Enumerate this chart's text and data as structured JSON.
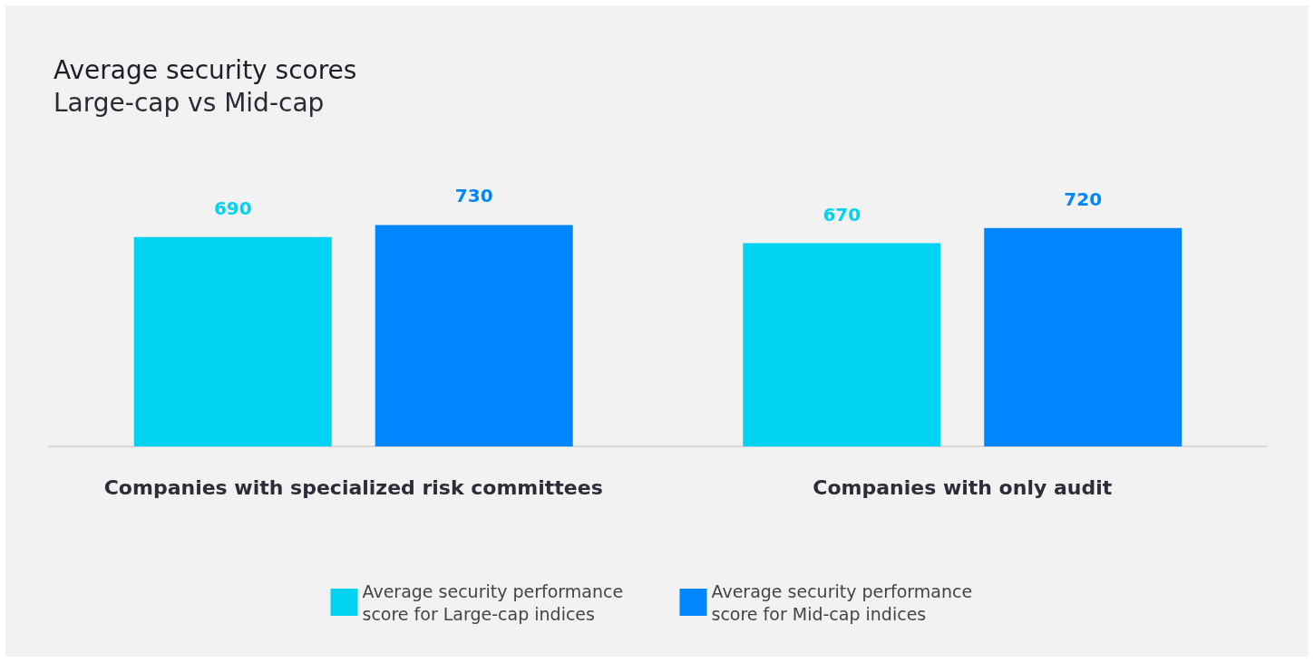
{
  "chart_data": {
    "type": "bar",
    "title": "Average security scores",
    "subtitle": "Large-cap vs Mid-cap",
    "categories": [
      "Companies with specialized risk committees",
      "Companies with only audit"
    ],
    "series": [
      {
        "name": "Average security performance score for Large-cap indices",
        "color": "#00d2f1",
        "values": [
          690,
          670
        ]
      },
      {
        "name": "Average security performance score for Mid-cap indices",
        "color": "#0086fe",
        "values": [
          730,
          720
        ]
      }
    ],
    "data_labels": true,
    "legend": "bottom"
  }
}
